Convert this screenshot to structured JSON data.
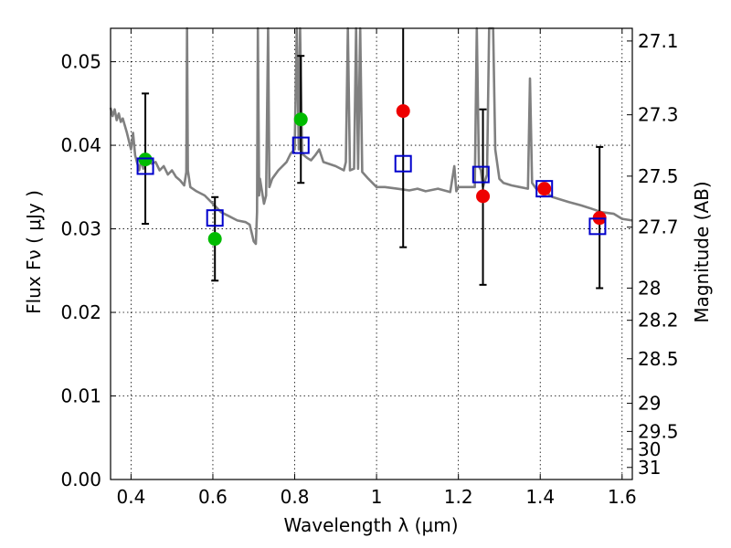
{
  "chart_data": {
    "type": "scatter",
    "xlabel": "Wavelength  λ (μm)",
    "ylabel": "Flux  Fν  ( μJy )",
    "ylabel_right": "Magnitude (AB)",
    "xlim": [
      0.35,
      1.625
    ],
    "ylim": [
      0.0,
      0.054
    ],
    "grid": true,
    "x_ticks": [
      {
        "value": 0.4,
        "label": "0.4"
      },
      {
        "value": 0.6,
        "label": "0.6"
      },
      {
        "value": 0.8,
        "label": "0.8"
      },
      {
        "value": 1.0,
        "label": "1"
      },
      {
        "value": 1.2,
        "label": "1.2"
      },
      {
        "value": 1.4,
        "label": "1.4"
      },
      {
        "value": 1.6,
        "label": "1.6"
      }
    ],
    "y_ticks": [
      {
        "value": 0.0,
        "label": "0.00"
      },
      {
        "value": 0.01,
        "label": "0.01"
      },
      {
        "value": 0.02,
        "label": "0.02"
      },
      {
        "value": 0.03,
        "label": "0.03"
      },
      {
        "value": 0.04,
        "label": "0.04"
      },
      {
        "value": 0.05,
        "label": "0.05"
      }
    ],
    "right_ticks": [
      {
        "mag": 27.1,
        "label": "27.1"
      },
      {
        "mag": 27.3,
        "label": "27.3"
      },
      {
        "mag": 27.5,
        "label": "27.5"
      },
      {
        "mag": 27.7,
        "label": "27.7"
      },
      {
        "mag": 28.0,
        "label": "28"
      },
      {
        "mag": 28.2,
        "label": "28.2"
      },
      {
        "mag": 28.5,
        "label": "28.5"
      },
      {
        "mag": 29.0,
        "label": "29"
      },
      {
        "mag": 29.5,
        "label": "29.5"
      },
      {
        "mag": 30.0,
        "label": "30"
      },
      {
        "mag": 31.0,
        "label": "31"
      }
    ],
    "series": [
      {
        "type": "line",
        "color": "#808080",
        "points": [
          [
            0.35,
            0.0445
          ],
          [
            0.355,
            0.0435
          ],
          [
            0.36,
            0.0443
          ],
          [
            0.365,
            0.043
          ],
          [
            0.37,
            0.0438
          ],
          [
            0.375,
            0.0428
          ],
          [
            0.38,
            0.0432
          ],
          [
            0.39,
            0.0415
          ],
          [
            0.4,
            0.0395
          ],
          [
            0.405,
            0.0415
          ],
          [
            0.41,
            0.0388
          ],
          [
            0.42,
            0.037
          ],
          [
            0.425,
            0.0383
          ],
          [
            0.43,
            0.0372
          ],
          [
            0.44,
            0.0385
          ],
          [
            0.45,
            0.0378
          ],
          [
            0.46,
            0.038
          ],
          [
            0.47,
            0.037
          ],
          [
            0.48,
            0.0375
          ],
          [
            0.49,
            0.0365
          ],
          [
            0.5,
            0.037
          ],
          [
            0.51,
            0.0362
          ],
          [
            0.52,
            0.0358
          ],
          [
            0.53,
            0.0352
          ],
          [
            0.535,
            0.0368
          ],
          [
            0.537,
            0.0545
          ],
          [
            0.539,
            0.037
          ],
          [
            0.545,
            0.035
          ],
          [
            0.56,
            0.0345
          ],
          [
            0.58,
            0.034
          ],
          [
            0.6,
            0.033
          ],
          [
            0.62,
            0.032
          ],
          [
            0.64,
            0.0315
          ],
          [
            0.66,
            0.031
          ],
          [
            0.68,
            0.0308
          ],
          [
            0.69,
            0.0305
          ],
          [
            0.7,
            0.0285
          ],
          [
            0.705,
            0.0282
          ],
          [
            0.708,
            0.032
          ],
          [
            0.71,
            0.0545
          ],
          [
            0.713,
            0.034
          ],
          [
            0.715,
            0.036
          ],
          [
            0.72,
            0.0345
          ],
          [
            0.725,
            0.033
          ],
          [
            0.73,
            0.034
          ],
          [
            0.735,
            0.0545
          ],
          [
            0.738,
            0.035
          ],
          [
            0.745,
            0.036
          ],
          [
            0.76,
            0.037
          ],
          [
            0.78,
            0.038
          ],
          [
            0.79,
            0.039
          ],
          [
            0.8,
            0.0395
          ],
          [
            0.805,
            0.0545
          ],
          [
            0.81,
            0.0395
          ],
          [
            0.813,
            0.0545
          ],
          [
            0.818,
            0.039
          ],
          [
            0.83,
            0.0385
          ],
          [
            0.84,
            0.0382
          ],
          [
            0.85,
            0.0388
          ],
          [
            0.86,
            0.0395
          ],
          [
            0.87,
            0.038
          ],
          [
            0.9,
            0.0375
          ],
          [
            0.92,
            0.037
          ],
          [
            0.925,
            0.038
          ],
          [
            0.93,
            0.0545
          ],
          [
            0.935,
            0.037
          ],
          [
            0.945,
            0.0372
          ],
          [
            0.95,
            0.0545
          ],
          [
            0.955,
            0.0372
          ],
          [
            0.96,
            0.0545
          ],
          [
            0.965,
            0.0368
          ],
          [
            0.98,
            0.036
          ],
          [
            1.0,
            0.035
          ],
          [
            1.02,
            0.035
          ],
          [
            1.05,
            0.0348
          ],
          [
            1.08,
            0.0346
          ],
          [
            1.1,
            0.0348
          ],
          [
            1.12,
            0.0345
          ],
          [
            1.15,
            0.0348
          ],
          [
            1.18,
            0.0344
          ],
          [
            1.19,
            0.0375
          ],
          [
            1.195,
            0.0345
          ],
          [
            1.2,
            0.035
          ],
          [
            1.22,
            0.035
          ],
          [
            1.24,
            0.035
          ],
          [
            1.245,
            0.0545
          ],
          [
            1.25,
            0.0375
          ],
          [
            1.255,
            0.037
          ],
          [
            1.26,
            0.035
          ],
          [
            1.27,
            0.0365
          ],
          [
            1.275,
            0.0545
          ],
          [
            1.28,
            0.0545
          ],
          [
            1.285,
            0.0545
          ],
          [
            1.29,
            0.0395
          ],
          [
            1.3,
            0.036
          ],
          [
            1.31,
            0.0355
          ],
          [
            1.33,
            0.0352
          ],
          [
            1.35,
            0.035
          ],
          [
            1.37,
            0.0348
          ],
          [
            1.375,
            0.048
          ],
          [
            1.38,
            0.0355
          ],
          [
            1.39,
            0.0348
          ],
          [
            1.41,
            0.0345
          ],
          [
            1.43,
            0.0338
          ],
          [
            1.45,
            0.0335
          ],
          [
            1.47,
            0.0332
          ],
          [
            1.5,
            0.0328
          ],
          [
            1.52,
            0.0325
          ],
          [
            1.55,
            0.032
          ],
          [
            1.58,
            0.0318
          ],
          [
            1.6,
            0.0312
          ],
          [
            1.625,
            0.031
          ]
        ]
      },
      {
        "name": "",
        "type": "square",
        "color": "#0000cc",
        "points": [
          [
            0.435,
            0.0375
          ],
          [
            0.605,
            0.0313
          ],
          [
            0.815,
            0.04
          ],
          [
            1.065,
            0.0378
          ],
          [
            1.255,
            0.0365
          ],
          [
            1.41,
            0.0348
          ],
          [
            1.54,
            0.0303
          ]
        ]
      },
      {
        "name": "",
        "type": "dot",
        "color": "#00bb00",
        "points": [
          [
            0.435,
            0.0383
          ],
          [
            0.605,
            0.0288
          ],
          [
            0.815,
            0.0431
          ]
        ]
      },
      {
        "name": "",
        "type": "dot",
        "color": "#ee0000",
        "points": [
          [
            1.065,
            0.0441
          ],
          [
            1.26,
            0.0339
          ],
          [
            1.41,
            0.0348
          ],
          [
            1.545,
            0.0313
          ]
        ]
      }
    ],
    "error_bars": [
      {
        "x": 0.435,
        "y": 0.0383,
        "low": 0.0306,
        "high": 0.0462
      },
      {
        "x": 0.605,
        "y": 0.0288,
        "low": 0.0238,
        "high": 0.0338
      },
      {
        "x": 0.815,
        "y": 0.0431,
        "low": 0.0355,
        "high": 0.0507
      },
      {
        "x": 1.065,
        "y": 0.0441,
        "low": 0.0278,
        "high": 0.0545
      },
      {
        "x": 1.26,
        "y": 0.0339,
        "low": 0.0233,
        "high": 0.0443
      },
      {
        "x": 1.545,
        "y": 0.0313,
        "low": 0.0229,
        "high": 0.0398
      }
    ]
  }
}
